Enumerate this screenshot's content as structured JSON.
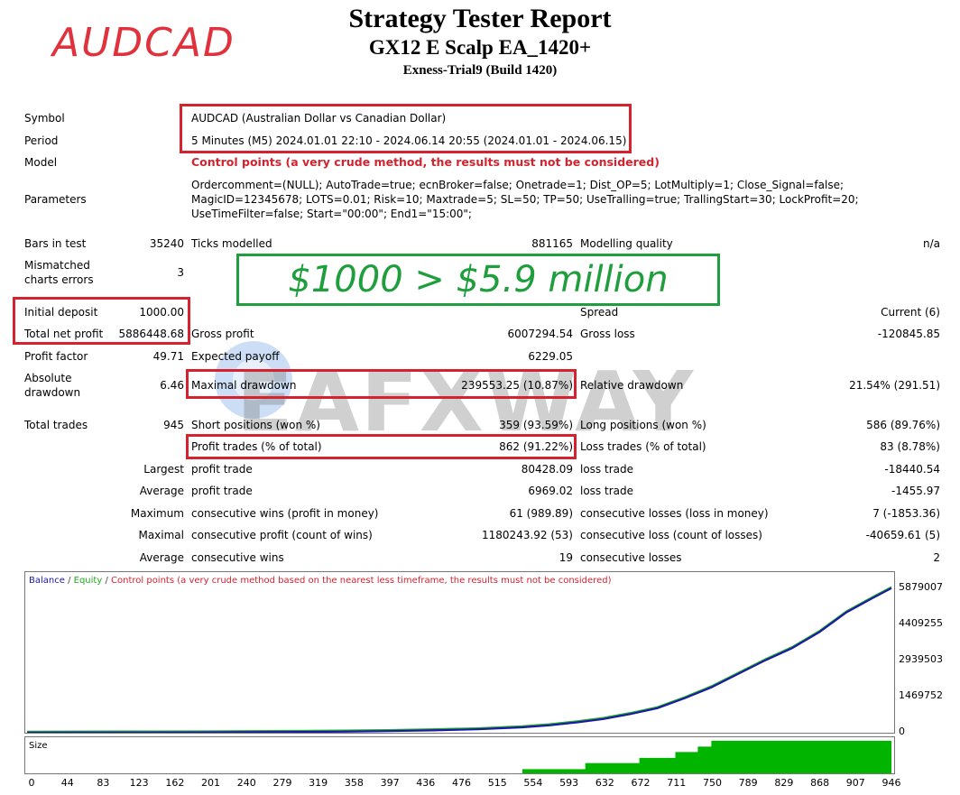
{
  "header": {
    "title": "Strategy Tester Report",
    "ea_name": "GX12 E Scalp EA_1420+",
    "server": "Exness-Trial9 (Build 1420)",
    "pair_overlay": "AUDCAD"
  },
  "settings": {
    "symbol_label": "Symbol",
    "symbol_value": "AUDCAD (Australian Dollar vs Canadian Dollar)",
    "period_label": "Period",
    "period_value": "5 Minutes (M5) 2024.01.01 22:10 - 2024.06.14 20:55 (2024.01.01 - 2024.06.15)",
    "model_label": "Model",
    "model_value": "Control points (a very crude method, the results must not be considered)",
    "parameters_label": "Parameters",
    "parameters_line1": "Ordercomment=(NULL); AutoTrade=true; ecnBroker=false; Onetrade=1; Dist_OP=5; LotMultiply=1; Close_Signal=false;",
    "parameters_line2": "MagicID=12345678; LOTS=0.01; Risk=10; Maxtrade=5; SL=50; TP=50; UseTralling=true; TrallingStart=30; LockProfit=20;",
    "parameters_line3": "UseTimeFilter=false; Start=\"00:00\"; End1=\"15:00\";"
  },
  "overlay_banner": "$1000 > $5.9 million",
  "watermark": "EAFXWAY",
  "stats": {
    "bars_in_test_label": "Bars in test",
    "bars_in_test": "35240",
    "ticks_modelled_label": "Ticks modelled",
    "ticks_modelled": "881165",
    "modelling_quality_label": "Modelling quality",
    "modelling_quality": "n/a",
    "mismatched_label_1": "Mismatched",
    "mismatched_label_2": "charts errors",
    "mismatched": "3",
    "initial_deposit_label": "Initial deposit",
    "initial_deposit": "1000.00",
    "spread_label": "Spread",
    "spread": "Current (6)",
    "total_net_profit_label": "Total net profit",
    "total_net_profit": "5886448.68",
    "gross_profit_label": "Gross profit",
    "gross_profit": "6007294.54",
    "gross_loss_label": "Gross loss",
    "gross_loss": "-120845.85",
    "profit_factor_label": "Profit factor",
    "profit_factor": "49.71",
    "expected_payoff_label": "Expected payoff",
    "expected_payoff": "6229.05",
    "absolute_dd_label_1": "Absolute",
    "absolute_dd_label_2": "drawdown",
    "absolute_dd": "6.46",
    "maximal_dd_label": "Maximal drawdown",
    "maximal_dd": "239553.25 (10.87%)",
    "relative_dd_label": "Relative drawdown",
    "relative_dd": "21.54% (291.51)",
    "total_trades_label": "Total trades",
    "total_trades": "945",
    "short_label": "Short positions (won %)",
    "short": "359 (93.59%)",
    "long_label": "Long positions (won %)",
    "long": "586 (89.76%)",
    "profit_trades_label": "Profit trades (% of total)",
    "profit_trades": "862 (91.22%)",
    "loss_trades_label": "Loss trades (% of total)",
    "loss_trades": "83 (8.78%)",
    "largest_label": "Largest",
    "largest_profit_label": "profit trade",
    "largest_profit": "80428.09",
    "largest_loss_label": "loss trade",
    "largest_loss": "-18440.54",
    "average_label": "Average",
    "average_profit_label": "profit trade",
    "average_profit": "6969.02",
    "average_loss_label": "loss trade",
    "average_loss": "-1455.97",
    "maximum_label": "Maximum",
    "max_cons_wins_label": "consecutive wins (profit in money)",
    "max_cons_wins": "61 (989.89)",
    "max_cons_losses_label": "consecutive losses (loss in money)",
    "max_cons_losses": "7 (-1853.36)",
    "maximal_label": "Maximal",
    "maximal_cons_profit_label": "consecutive profit (count of wins)",
    "maximal_cons_profit": "1180243.92 (53)",
    "maximal_cons_loss_label": "consecutive loss (count of losses)",
    "maximal_cons_loss": "-40659.61 (5)",
    "average2_label": "Average",
    "avg_cons_wins_label": "consecutive wins",
    "avg_cons_wins": "19",
    "avg_cons_losses_label": "consecutive losses",
    "avg_cons_losses": "2"
  },
  "chart_data": {
    "type": "line",
    "legend_balance": "Balance",
    "legend_equity": "Equity",
    "legend_note": "Control points (a very crude method based on the nearest less timeframe, the results must not be considered)",
    "colors": {
      "balance": "#1a1aa6",
      "equity": "#22aa22",
      "note": "#d4232e",
      "size": "#00b400"
    },
    "y_ticks": [
      "5879007",
      "4409255",
      "2939503",
      "1469752",
      "0"
    ],
    "ylim": [
      0,
      5879007
    ],
    "x_ticks": [
      "0",
      "44",
      "83",
      "123",
      "162",
      "201",
      "240",
      "279",
      "319",
      "358",
      "397",
      "436",
      "476",
      "515",
      "554",
      "593",
      "632",
      "672",
      "711",
      "750",
      "789",
      "829",
      "868",
      "907",
      "946"
    ],
    "xlim": [
      0,
      946
    ],
    "size_label": "Size",
    "balance_x": [
      0,
      50,
      100,
      150,
      200,
      250,
      300,
      350,
      400,
      450,
      500,
      550,
      580,
      610,
      640,
      670,
      700,
      730,
      760,
      790,
      820,
      850,
      880,
      910,
      940,
      960
    ],
    "balance_y": [
      1000,
      3000,
      6000,
      10000,
      15000,
      22000,
      32000,
      45000,
      65000,
      95000,
      140000,
      220000,
      300000,
      420000,
      560000,
      760000,
      1000000,
      1400000,
      1850000,
      2400000,
      2950000,
      3450000,
      4100000,
      4900000,
      5500000,
      5886448
    ],
    "size_steps": [
      {
        "x": 0,
        "level": 0
      },
      {
        "x": 550,
        "level": 0.12
      },
      {
        "x": 620,
        "level": 0.3
      },
      {
        "x": 680,
        "level": 0.45
      },
      {
        "x": 720,
        "level": 0.62
      },
      {
        "x": 745,
        "level": 0.78
      },
      {
        "x": 760,
        "level": 0.95
      },
      {
        "x": 960,
        "level": 0.95
      }
    ]
  }
}
